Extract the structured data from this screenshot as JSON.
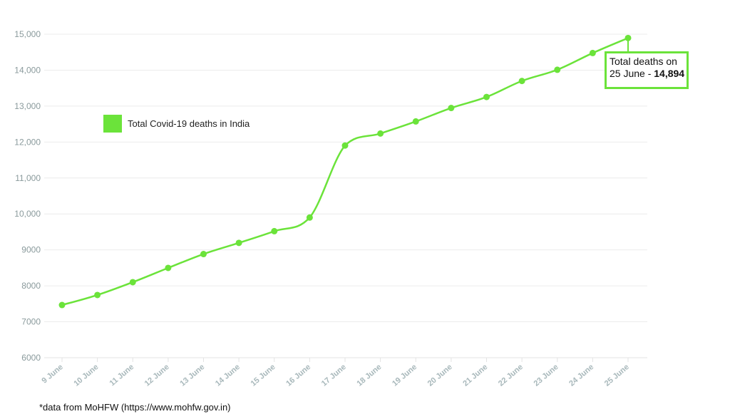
{
  "chart_data": {
    "type": "line",
    "categories": [
      "9 June",
      "10 June",
      "11 June",
      "12 June",
      "13 June",
      "14 June",
      "15 June",
      "16 June",
      "17 June",
      "18 June",
      "19 June",
      "20 June",
      "21 June",
      "22 June",
      "23 June",
      "24 June",
      "25 June"
    ],
    "series": [
      {
        "name": "Total Covid-19 deaths in India",
        "values": [
          7466,
          7745,
          8102,
          8498,
          8884,
          9195,
          9520,
          9900,
          11903,
          12237,
          12573,
          12948,
          13254,
          13699,
          14011,
          14476,
          14894
        ],
        "color": "#6be33a"
      }
    ],
    "yticks": [
      "6000",
      "7000",
      "8000",
      "9000",
      "10,000",
      "11,000",
      "12,000",
      "13,000",
      "14,000",
      "15,000"
    ],
    "ylim": [
      6000,
      15000
    ],
    "grid": true,
    "legend_position": "upper-left",
    "annotation": {
      "line1": "Total deaths on",
      "line2_prefix": "25 June - ",
      "line2_value": "14,894"
    },
    "footnote": "*data from MoHFW (https://www.mohfw.gov.in)"
  }
}
